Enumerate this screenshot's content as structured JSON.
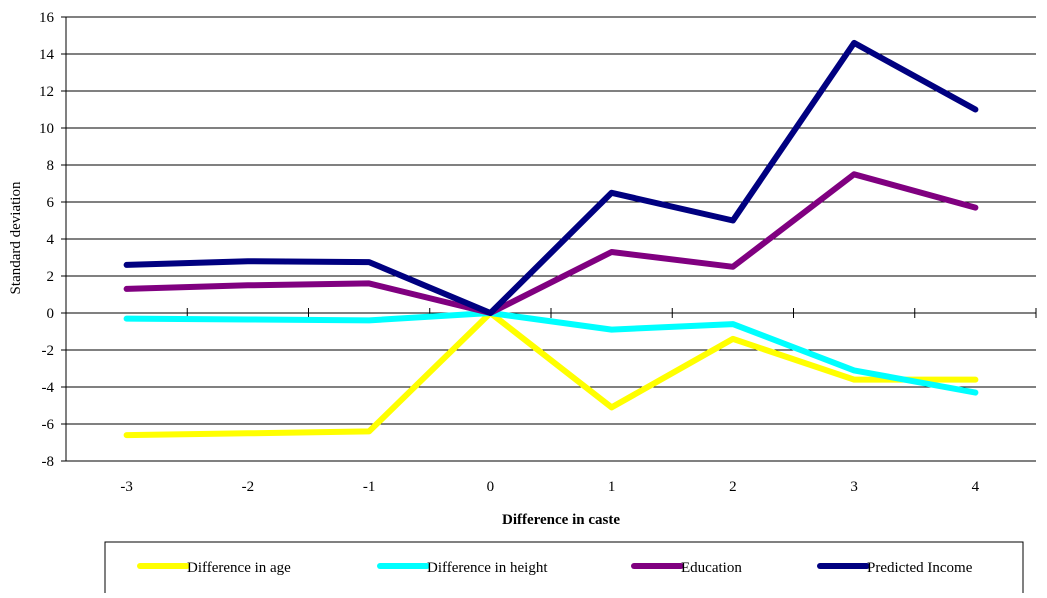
{
  "chart_data": {
    "type": "line",
    "xlabel": "Difference in caste",
    "ylabel": "Standard deviation",
    "categories": [
      "-3",
      "-2",
      "-1",
      "0",
      "1",
      "2",
      "3",
      "4"
    ],
    "ylim": [
      -8,
      16
    ],
    "yticks": [
      "16",
      "14",
      "12",
      "10",
      "8",
      "6",
      "4",
      "2",
      "0",
      "-2",
      "-4",
      "-6",
      "-8"
    ],
    "grid": true,
    "legend_position": "bottom",
    "series": [
      {
        "name": "Difference in age",
        "color": "#FFFF00",
        "values": [
          -6.6,
          -6.5,
          -6.4,
          0,
          -5.1,
          -1.4,
          -3.6,
          -3.6
        ]
      },
      {
        "name": "Difference in height",
        "color": "#00FFFF",
        "values": [
          -0.3,
          -0.35,
          -0.4,
          0,
          -0.9,
          -0.6,
          -3.1,
          -4.3
        ]
      },
      {
        "name": "Education",
        "color": "#800080",
        "values": [
          1.3,
          1.5,
          1.6,
          0,
          3.3,
          2.5,
          7.5,
          5.7
        ]
      },
      {
        "name": "Predicted Income",
        "color": "#000080",
        "values": [
          2.6,
          2.8,
          2.75,
          0,
          6.5,
          5.0,
          14.6,
          11.0
        ]
      }
    ]
  }
}
